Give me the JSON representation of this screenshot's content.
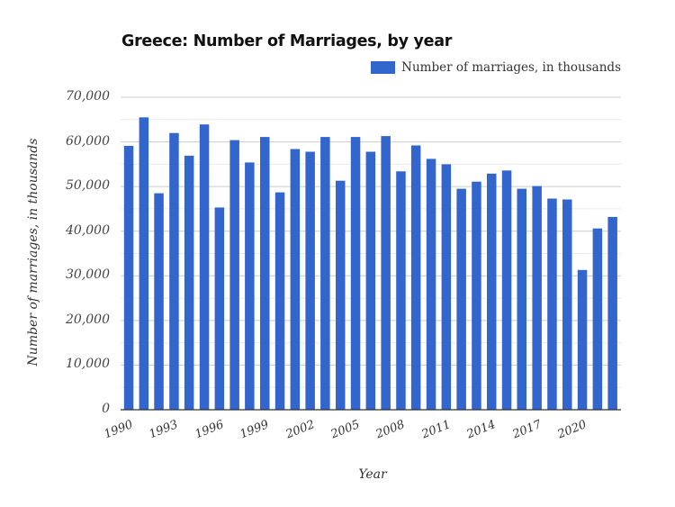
{
  "chart_data": {
    "type": "bar",
    "title": "Greece: Number of Marriages, by year",
    "xlabel": "Year",
    "ylabel": "Number of marriages, in thousands",
    "legend": {
      "position": "top-right",
      "entries": [
        "Number of marriages, in thousands"
      ]
    },
    "grid": true,
    "ylim": [
      0,
      70000
    ],
    "y_ticks": [
      "0",
      "10,000",
      "20,000",
      "30,000",
      "40,000",
      "50,000",
      "60,000",
      "70,000"
    ],
    "x_tick_labels": [
      "1990",
      "1993",
      "1996",
      "1999",
      "2002",
      "2005",
      "2008",
      "2011",
      "2014",
      "2017",
      "2020"
    ],
    "categories": [
      "1990",
      "1991",
      "1992",
      "1993",
      "1994",
      "1995",
      "1996",
      "1997",
      "1998",
      "1999",
      "2000",
      "2001",
      "2002",
      "2003",
      "2004",
      "2005",
      "2006",
      "2007",
      "2008",
      "2009",
      "2010",
      "2011",
      "2012",
      "2013",
      "2014",
      "2015",
      "2016",
      "2017",
      "2018",
      "2019",
      "2020",
      "2021",
      "2022"
    ],
    "series": [
      {
        "name": "Number of marriages, in thousands",
        "color": "#3366cc",
        "values": [
          59100,
          65500,
          48500,
          62000,
          56900,
          63900,
          45300,
          60400,
          55400,
          61100,
          48700,
          58400,
          57800,
          61100,
          51300,
          61100,
          57800,
          61300,
          53400,
          59200,
          56200,
          55000,
          49500,
          51100,
          52900,
          53600,
          49500,
          50100,
          47300,
          47100,
          31300,
          40600,
          43200
        ]
      }
    ]
  },
  "colors": {
    "bar": "#3366cc",
    "gridline": "#cccccc",
    "minor_gridline": "#ebebeb",
    "axis": "#333333"
  }
}
